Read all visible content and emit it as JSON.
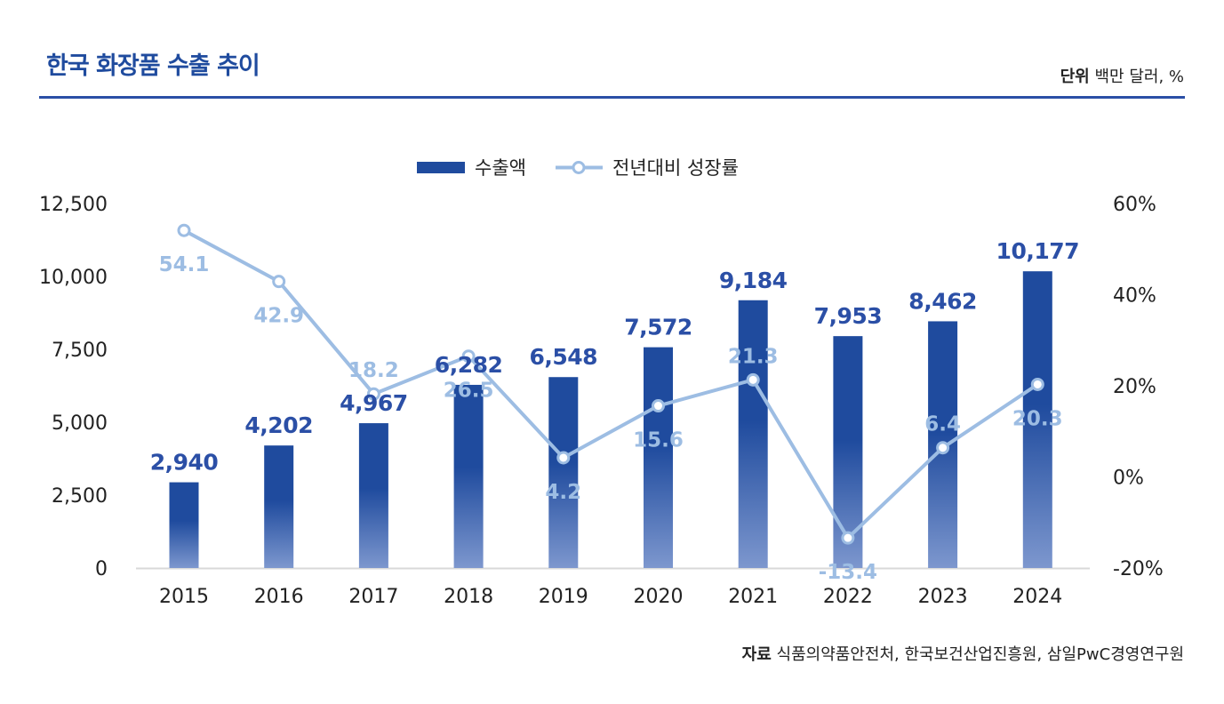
{
  "header": {
    "title": "한국 화장품 수출 추이",
    "unit_label": "단위",
    "unit_value": "백만 달러, %"
  },
  "footer": {
    "source_label": "자료",
    "source_value": "식품의약품안전처, 한국보건산업진흥원, 삼일PwC경영연구원"
  },
  "colors": {
    "bar_top": "#1f4b9e",
    "bar_bottom": "#7d97ce",
    "line": "#9dbde3",
    "bar_label": "#2b4fa6",
    "line_label": "#9dbde3",
    "accent": "#2b4fa6"
  },
  "chart_data": {
    "type": "bar",
    "categories": [
      "2015",
      "2016",
      "2017",
      "2018",
      "2019",
      "2020",
      "2021",
      "2022",
      "2023",
      "2024"
    ],
    "series": [
      {
        "name": "수출액",
        "type": "bar",
        "axis": "left",
        "values": [
          2940,
          4202,
          4967,
          6282,
          6548,
          7572,
          9184,
          7953,
          8462,
          10177
        ],
        "labels": [
          "2,940",
          "4,202",
          "4,967",
          "6,282",
          "6,548",
          "7,572",
          "9,184",
          "7,953",
          "8,462",
          "10,177"
        ]
      },
      {
        "name": "전년대비 성장률",
        "type": "line",
        "axis": "right",
        "values": [
          54.1,
          42.9,
          18.2,
          26.5,
          4.2,
          15.6,
          21.3,
          -13.4,
          6.4,
          20.3
        ],
        "labels": [
          "54.1",
          "42.9",
          "18.2",
          "26.5",
          "4.2",
          "15.6",
          "21.3",
          "-13.4",
          "6.4",
          "20.3"
        ]
      }
    ],
    "y_left": {
      "lim": [
        0,
        12500
      ],
      "ticks": [
        "0",
        "2,500",
        "5,000",
        "7,500",
        "10,000",
        "12,500"
      ],
      "tick_values": [
        0,
        2500,
        5000,
        7500,
        10000,
        12500
      ]
    },
    "y_right": {
      "lim": [
        -20,
        60
      ],
      "ticks": [
        "-20%",
        "0%",
        "20%",
        "40%",
        "60%"
      ],
      "tick_values": [
        -20,
        0,
        20,
        40,
        60
      ]
    },
    "grid": false,
    "legend": "top-center"
  }
}
